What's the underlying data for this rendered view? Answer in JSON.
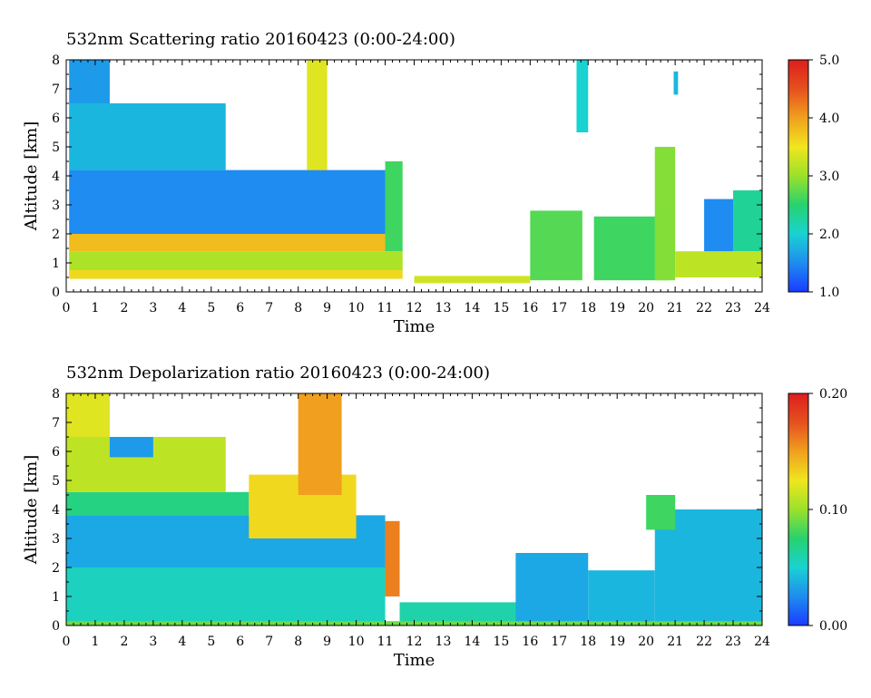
{
  "chart_data": [
    {
      "type": "heatmap",
      "title": "532nm Scattering ratio  20160423 (0:00-24:00)",
      "xlabel": "Time",
      "ylabel": "Altitude [km]",
      "xlim": [
        0,
        24
      ],
      "ylim": [
        0,
        8
      ],
      "x_ticks": [
        "0",
        "1",
        "2",
        "3",
        "4",
        "5",
        "6",
        "7",
        "8",
        "9",
        "10",
        "11",
        "12",
        "13",
        "14",
        "15",
        "16",
        "17",
        "18",
        "19",
        "20",
        "21",
        "22",
        "23",
        "24"
      ],
      "y_ticks": [
        "0",
        "1",
        "2",
        "3",
        "4",
        "5",
        "6",
        "7",
        "8"
      ],
      "colorbar": {
        "min": 1.0,
        "max": 5.0,
        "ticks": [
          "1.0",
          "2.0",
          "3.0",
          "4.0",
          "5.0"
        ],
        "colors": [
          "#1a3cff",
          "#1e8cf0",
          "#19d2d2",
          "#27d26e",
          "#9be12a",
          "#f0e61e",
          "#f0a01e",
          "#e6501e",
          "#dc1e1e"
        ]
      },
      "regions": [
        {
          "t0": 0.1,
          "t1": 11.6,
          "z0": 0.45,
          "z1": 0.75,
          "value": 3.6
        },
        {
          "t0": 0.1,
          "t1": 11.6,
          "z0": 0.75,
          "z1": 1.4,
          "value": 3.1
        },
        {
          "t0": 0.1,
          "t1": 11.0,
          "z0": 1.4,
          "z1": 2.0,
          "value": 3.8
        },
        {
          "t0": 0.1,
          "t1": 11.0,
          "z0": 2.0,
          "z1": 4.2,
          "value": 1.5
        },
        {
          "t0": 0.1,
          "t1": 5.5,
          "z0": 4.2,
          "z1": 6.5,
          "value": 1.8
        },
        {
          "t0": 0.1,
          "t1": 1.5,
          "z0": 6.5,
          "z1": 8.0,
          "value": 1.6
        },
        {
          "t0": 8.3,
          "t1": 9.0,
          "z0": 4.2,
          "z1": 8.0,
          "value": 3.4
        },
        {
          "t0": 11.0,
          "t1": 11.6,
          "z0": 1.4,
          "z1": 4.5,
          "value": 2.6
        },
        {
          "t0": 12.0,
          "t1": 16.0,
          "z0": 0.3,
          "z1": 0.55,
          "value": 3.3
        },
        {
          "t0": 16.0,
          "t1": 17.8,
          "z0": 0.4,
          "z1": 2.8,
          "value": 2.7
        },
        {
          "t0": 17.6,
          "t1": 18.0,
          "z0": 5.5,
          "z1": 8.0,
          "value": 2.0
        },
        {
          "t0": 18.2,
          "t1": 20.8,
          "z0": 0.4,
          "z1": 2.6,
          "value": 2.6
        },
        {
          "t0": 20.3,
          "t1": 21.0,
          "z0": 0.4,
          "z1": 5.0,
          "value": 2.9
        },
        {
          "t0": 20.95,
          "t1": 21.1,
          "z0": 6.8,
          "z1": 7.6,
          "value": 1.8
        },
        {
          "t0": 21.0,
          "t1": 24.0,
          "z0": 0.5,
          "z1": 1.4,
          "value": 3.2
        },
        {
          "t0": 22.0,
          "t1": 23.0,
          "z0": 1.4,
          "z1": 3.2,
          "value": 1.5
        },
        {
          "t0": 23.0,
          "t1": 24.0,
          "z0": 1.4,
          "z1": 3.5,
          "value": 2.3
        }
      ]
    },
    {
      "type": "heatmap",
      "title": "532nm Depolarization ratio  20160423 (0:00-24:00)",
      "xlabel": "Time",
      "ylabel": "Altitude [km]",
      "xlim": [
        0,
        24
      ],
      "ylim": [
        0,
        8
      ],
      "x_ticks": [
        "0",
        "1",
        "2",
        "3",
        "4",
        "5",
        "6",
        "7",
        "8",
        "9",
        "10",
        "11",
        "12",
        "13",
        "14",
        "15",
        "16",
        "17",
        "18",
        "19",
        "20",
        "21",
        "22",
        "23",
        "24"
      ],
      "y_ticks": [
        "0",
        "1",
        "2",
        "3",
        "4",
        "5",
        "6",
        "7",
        "8"
      ],
      "colorbar": {
        "min": 0.0,
        "max": 0.2,
        "ticks": [
          "0.00",
          "0.10",
          "0.20"
        ],
        "colors": [
          "#1a3cff",
          "#1e8cf0",
          "#19d2d2",
          "#27d26e",
          "#9be12a",
          "#f0e61e",
          "#f0a01e",
          "#e6501e",
          "#dc1e1e"
        ]
      },
      "regions": [
        {
          "t0": 0.0,
          "t1": 11.0,
          "z0": 0.0,
          "z1": 2.0,
          "value": 0.055
        },
        {
          "t0": 0.0,
          "t1": 11.0,
          "z0": 2.0,
          "z1": 3.8,
          "value": 0.035
        },
        {
          "t0": 0.0,
          "t1": 6.3,
          "z0": 3.8,
          "z1": 4.6,
          "value": 0.07
        },
        {
          "t0": 0.0,
          "t1": 5.5,
          "z0": 4.6,
          "z1": 6.5,
          "value": 0.11
        },
        {
          "t0": 0.0,
          "t1": 1.5,
          "z0": 6.5,
          "z1": 8.0,
          "value": 0.12
        },
        {
          "t0": 1.5,
          "t1": 3.0,
          "z0": 5.8,
          "z1": 6.5,
          "value": 0.03
        },
        {
          "t0": 6.3,
          "t1": 10.0,
          "z0": 3.0,
          "z1": 5.2,
          "value": 0.13
        },
        {
          "t0": 8.0,
          "t1": 9.5,
          "z0": 4.5,
          "z1": 8.0,
          "value": 0.15
        },
        {
          "t0": 11.0,
          "t1": 11.5,
          "z0": 1.0,
          "z1": 3.6,
          "value": 0.16
        },
        {
          "t0": 11.5,
          "t1": 16.0,
          "z0": 0.0,
          "z1": 0.8,
          "value": 0.06
        },
        {
          "t0": 15.5,
          "t1": 18.0,
          "z0": 0.0,
          "z1": 2.5,
          "value": 0.035
        },
        {
          "t0": 18.0,
          "t1": 20.3,
          "z0": 0.0,
          "z1": 1.9,
          "value": 0.04
        },
        {
          "t0": 20.3,
          "t1": 24.0,
          "z0": 0.0,
          "z1": 4.0,
          "value": 0.04
        },
        {
          "t0": 20.0,
          "t1": 21.0,
          "z0": 3.3,
          "z1": 4.5,
          "value": 0.08
        },
        {
          "t0": 0.0,
          "t1": 24.0,
          "z0": 0.0,
          "z1": 0.15,
          "value": 0.09
        }
      ]
    }
  ]
}
